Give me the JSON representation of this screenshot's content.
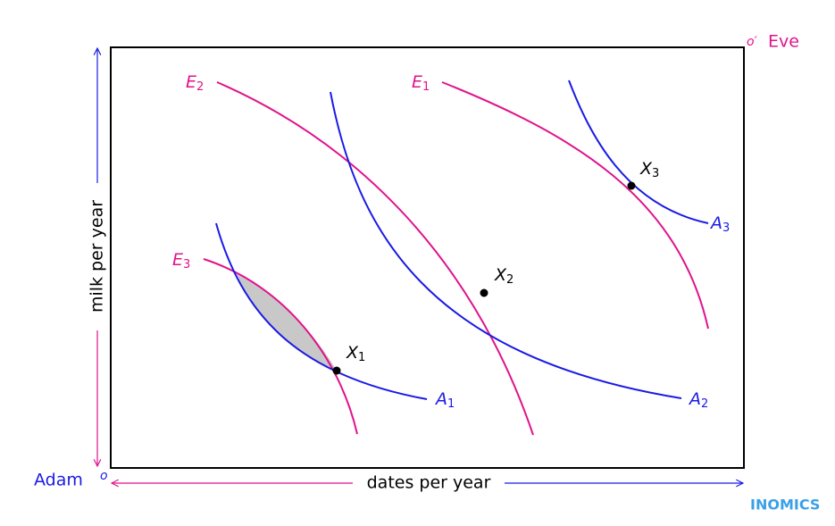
{
  "corners": {
    "origin_marker": "o",
    "origin_label": "Adam",
    "top_marker": "o′",
    "top_label": "Eve"
  },
  "axes": {
    "x_label": "dates per year",
    "y_label": "milk per year"
  },
  "curves": [
    {
      "letter": "E",
      "sub": "2"
    },
    {
      "letter": "E",
      "sub": "1"
    },
    {
      "letter": "E",
      "sub": "3"
    },
    {
      "letter": "A",
      "sub": "1"
    },
    {
      "letter": "A",
      "sub": "2"
    },
    {
      "letter": "A",
      "sub": "3"
    }
  ],
  "points": [
    {
      "letter": "X",
      "sub": "1"
    },
    {
      "letter": "X",
      "sub": "2"
    },
    {
      "letter": "X",
      "sub": "3"
    }
  ],
  "brand": "INOMICS"
}
